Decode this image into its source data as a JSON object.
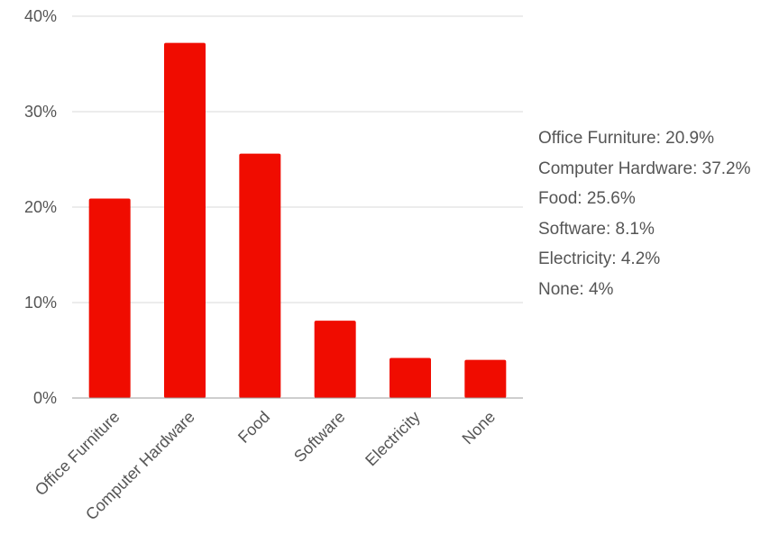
{
  "chart_data": {
    "type": "bar",
    "categories": [
      "Office Furniture",
      "Computer Hardware",
      "Food",
      "Software",
      "Electricity",
      "None"
    ],
    "values": [
      20.9,
      37.2,
      25.6,
      8.1,
      4.2,
      4
    ],
    "title": "",
    "xlabel": "",
    "ylabel": "",
    "ylim": [
      0,
      40
    ],
    "yticks": [
      "0%",
      "10%",
      "20%",
      "30%",
      "40%"
    ],
    "grid": true,
    "legend_position": "right",
    "bar_color": "#f00c00",
    "labels_text": [
      "Office Furniture: 20.9%",
      "Computer Hardware: 37.2%",
      "Food: 25.6%",
      "Software: 8.1%",
      "Electricity: 4.2%",
      "None: 4%"
    ]
  }
}
